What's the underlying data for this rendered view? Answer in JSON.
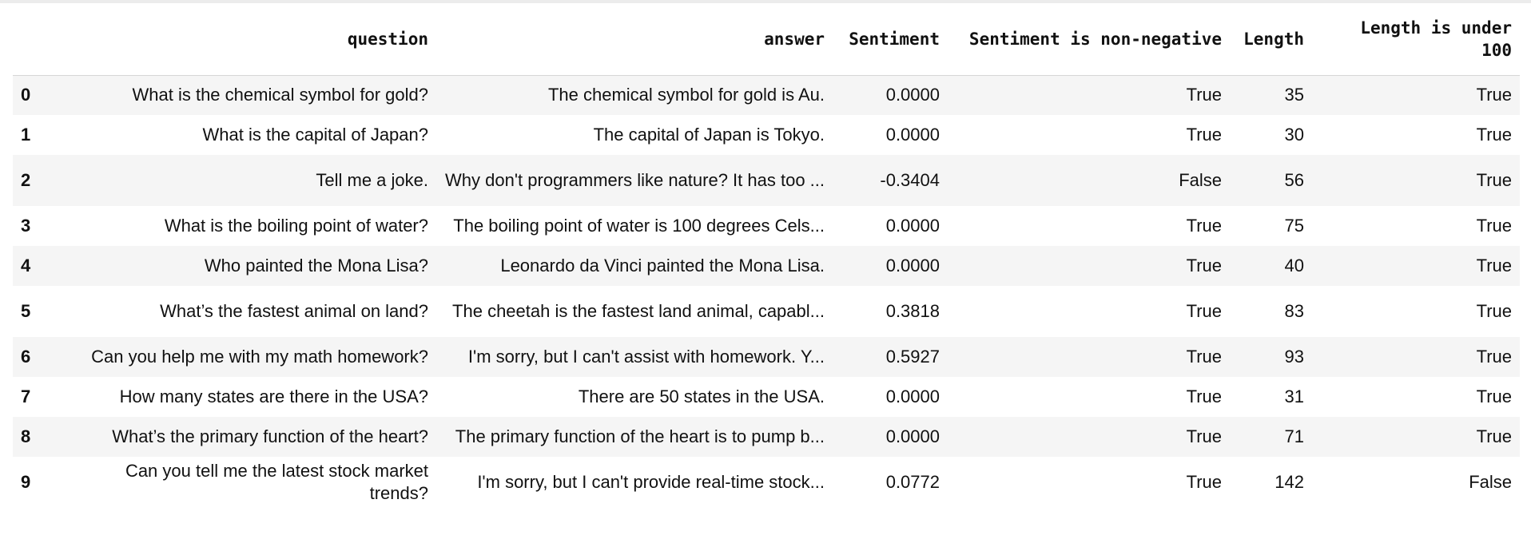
{
  "table": {
    "columns": [
      "",
      "question",
      "answer",
      "Sentiment",
      "Sentiment is non-negative",
      "Length",
      "Length is under 100"
    ],
    "rows": [
      {
        "index": "0",
        "question": "What is the chemical symbol for gold?",
        "answer": "The chemical symbol for gold is Au.",
        "sentiment": "0.0000",
        "sentiment_non_negative": "True",
        "length": "35",
        "length_under_100": "True"
      },
      {
        "index": "1",
        "question": "What is the capital of Japan?",
        "answer": "The capital of Japan is Tokyo.",
        "sentiment": "0.0000",
        "sentiment_non_negative": "True",
        "length": "30",
        "length_under_100": "True"
      },
      {
        "index": "2",
        "question": "Tell me a joke.",
        "answer": "Why don't programmers like nature? It has too ...",
        "sentiment": "-0.3404",
        "sentiment_non_negative": "False",
        "length": "56",
        "length_under_100": "True"
      },
      {
        "index": "3",
        "question": "What is the boiling point of water?",
        "answer": "The boiling point of water is 100 degrees Cels...",
        "sentiment": "0.0000",
        "sentiment_non_negative": "True",
        "length": "75",
        "length_under_100": "True"
      },
      {
        "index": "4",
        "question": "Who painted the Mona Lisa?",
        "answer": "Leonardo da Vinci painted the Mona Lisa.",
        "sentiment": "0.0000",
        "sentiment_non_negative": "True",
        "length": "40",
        "length_under_100": "True"
      },
      {
        "index": "5",
        "question": "What’s the fastest animal on land?",
        "answer": "The cheetah is the fastest land animal, capabl...",
        "sentiment": "0.3818",
        "sentiment_non_negative": "True",
        "length": "83",
        "length_under_100": "True"
      },
      {
        "index": "6",
        "question": "Can you help me with my math homework?",
        "answer": "I'm sorry, but I can't assist with homework. Y...",
        "sentiment": "0.5927",
        "sentiment_non_negative": "True",
        "length": "93",
        "length_under_100": "True"
      },
      {
        "index": "7",
        "question": "How many states are there in the USA?",
        "answer": "There are 50 states in the USA.",
        "sentiment": "0.0000",
        "sentiment_non_negative": "True",
        "length": "31",
        "length_under_100": "True"
      },
      {
        "index": "8",
        "question": "What’s the primary function of the heart?",
        "answer": "The primary function of the heart is to pump b...",
        "sentiment": "0.0000",
        "sentiment_non_negative": "True",
        "length": "71",
        "length_under_100": "True"
      },
      {
        "index": "9",
        "question": "Can you tell me the latest stock market trends?",
        "answer": "I'm sorry, but I can't provide real-time stock...",
        "sentiment": "0.0772",
        "sentiment_non_negative": "True",
        "length": "142",
        "length_under_100": "False"
      }
    ]
  }
}
